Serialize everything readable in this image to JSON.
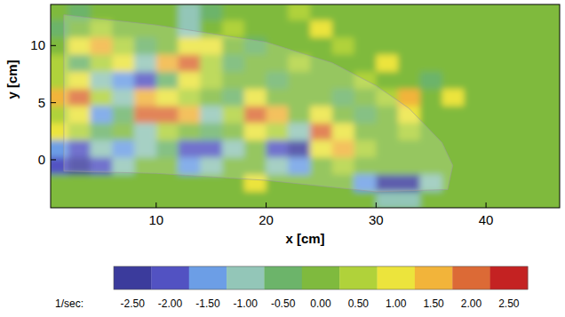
{
  "chart_data": {
    "type": "heatmap",
    "xlabel": "x [cm]",
    "ylabel": "y [cm]",
    "xlim": [
      0.4,
      46.7
    ],
    "ylim": [
      -4.2,
      13.6
    ],
    "xticks": [
      10,
      20,
      30,
      40
    ],
    "yticks": [
      0,
      5,
      10
    ],
    "x": [
      1,
      3,
      5,
      7,
      9,
      11,
      13,
      15,
      17,
      19,
      21,
      23,
      25,
      27,
      29,
      31,
      33,
      35,
      37,
      39,
      41,
      43,
      45,
      47
    ],
    "y": [
      -3.5,
      -2,
      -0.5,
      1,
      2.5,
      4,
      5.5,
      7,
      8.5,
      10,
      11.5,
      13
    ],
    "cells": [
      [
        0,
        0,
        0,
        0,
        0,
        0,
        0,
        0,
        0,
        0,
        0,
        0,
        0,
        0,
        0,
        -1,
        -1,
        0,
        0,
        0,
        0,
        0,
        0,
        0
      ],
      [
        0,
        0,
        0,
        0,
        0,
        0,
        0,
        0,
        0,
        1,
        0,
        0,
        0,
        0,
        -1.5,
        -2.5,
        -2.5,
        -1,
        0,
        0,
        0,
        0,
        0,
        0
      ],
      [
        -2,
        -2.5,
        -2,
        -1,
        0,
        0,
        -1.5,
        -1,
        0,
        0,
        -1,
        -1.5,
        0,
        0.5,
        0,
        0,
        0,
        0,
        0,
        0,
        0,
        0,
        0,
        0
      ],
      [
        -1.5,
        -2,
        -1,
        -1.5,
        -1,
        -0.5,
        -2,
        -2,
        -1,
        0,
        -2,
        -2.5,
        1,
        1.5,
        0.5,
        0,
        0,
        0,
        0,
        0,
        0,
        0,
        0,
        0
      ],
      [
        1,
        0.5,
        -0.5,
        0,
        -1,
        0.5,
        0,
        -0.5,
        0,
        1,
        0.5,
        -1,
        2,
        1,
        0,
        0,
        0.5,
        0,
        0,
        0,
        0,
        0,
        0,
        0
      ],
      [
        0.5,
        1,
        -1.5,
        -0.5,
        2,
        2,
        1.5,
        -1,
        0.5,
        2,
        1.5,
        0,
        1,
        0,
        -0.5,
        0,
        1,
        0,
        0,
        0,
        0,
        0,
        0,
        0
      ],
      [
        1.5,
        2,
        0.5,
        -1,
        1.5,
        1,
        0.5,
        0,
        -0.5,
        1,
        0,
        0,
        0,
        -0.5,
        0,
        0.5,
        1.5,
        0,
        1,
        0,
        0,
        0,
        0,
        0
      ],
      [
        0.5,
        1,
        -1,
        -1.5,
        -2,
        -0.5,
        1,
        0.5,
        0,
        0,
        -0.5,
        0,
        0,
        0,
        0.5,
        0,
        0,
        -0.5,
        0,
        0,
        0,
        0,
        0,
        0
      ],
      [
        0.5,
        -0.5,
        0.5,
        1,
        -1,
        1.5,
        2,
        0.5,
        -0.5,
        0,
        0,
        0.5,
        0,
        0,
        0,
        1,
        0,
        0,
        0,
        0,
        0,
        0,
        0,
        0
      ],
      [
        0,
        1,
        1.5,
        0.5,
        -0.5,
        0,
        1,
        1,
        0,
        -0.5,
        0,
        0,
        0,
        0.5,
        0,
        0,
        0,
        0,
        0,
        0,
        0,
        0,
        0,
        0
      ],
      [
        -0.5,
        0,
        0.5,
        0,
        0,
        0,
        -1,
        0,
        0.5,
        0,
        0,
        0,
        1,
        0,
        0,
        0,
        0,
        0,
        0,
        0,
        0,
        0,
        0,
        0
      ],
      [
        0,
        -0.5,
        0,
        0,
        0,
        0,
        -1,
        -0.5,
        0,
        0,
        0,
        0.5,
        0,
        0,
        0,
        0,
        0,
        0,
        0,
        0,
        0,
        0,
        0,
        0
      ]
    ],
    "colorbar": {
      "label": "1/sec:",
      "clim": [
        -2.75,
        2.75
      ],
      "ticks": [
        {
          "value": -2.5,
          "label": "-2.50"
        },
        {
          "value": -2,
          "label": "-2.00"
        },
        {
          "value": -1.5,
          "label": "-1.50"
        },
        {
          "value": -1,
          "label": "-1.00"
        },
        {
          "value": -0.5,
          "label": "-0.50"
        },
        {
          "value": 0,
          "label": "0.00"
        },
        {
          "value": 0.5,
          "label": "0.50"
        },
        {
          "value": 1,
          "label": "1.00"
        },
        {
          "value": 1.5,
          "label": "1.50"
        },
        {
          "value": 2,
          "label": "2.00"
        },
        {
          "value": 2.5,
          "label": "2.50"
        }
      ],
      "colors": [
        "#3b3b9c",
        "#5252c2",
        "#6c9ee6",
        "#93c6b8",
        "#6cb46a",
        "#7fba3e",
        "#b0d23a",
        "#ece43c",
        "#f2b43a",
        "#dc6a36",
        "#c42222"
      ]
    }
  }
}
